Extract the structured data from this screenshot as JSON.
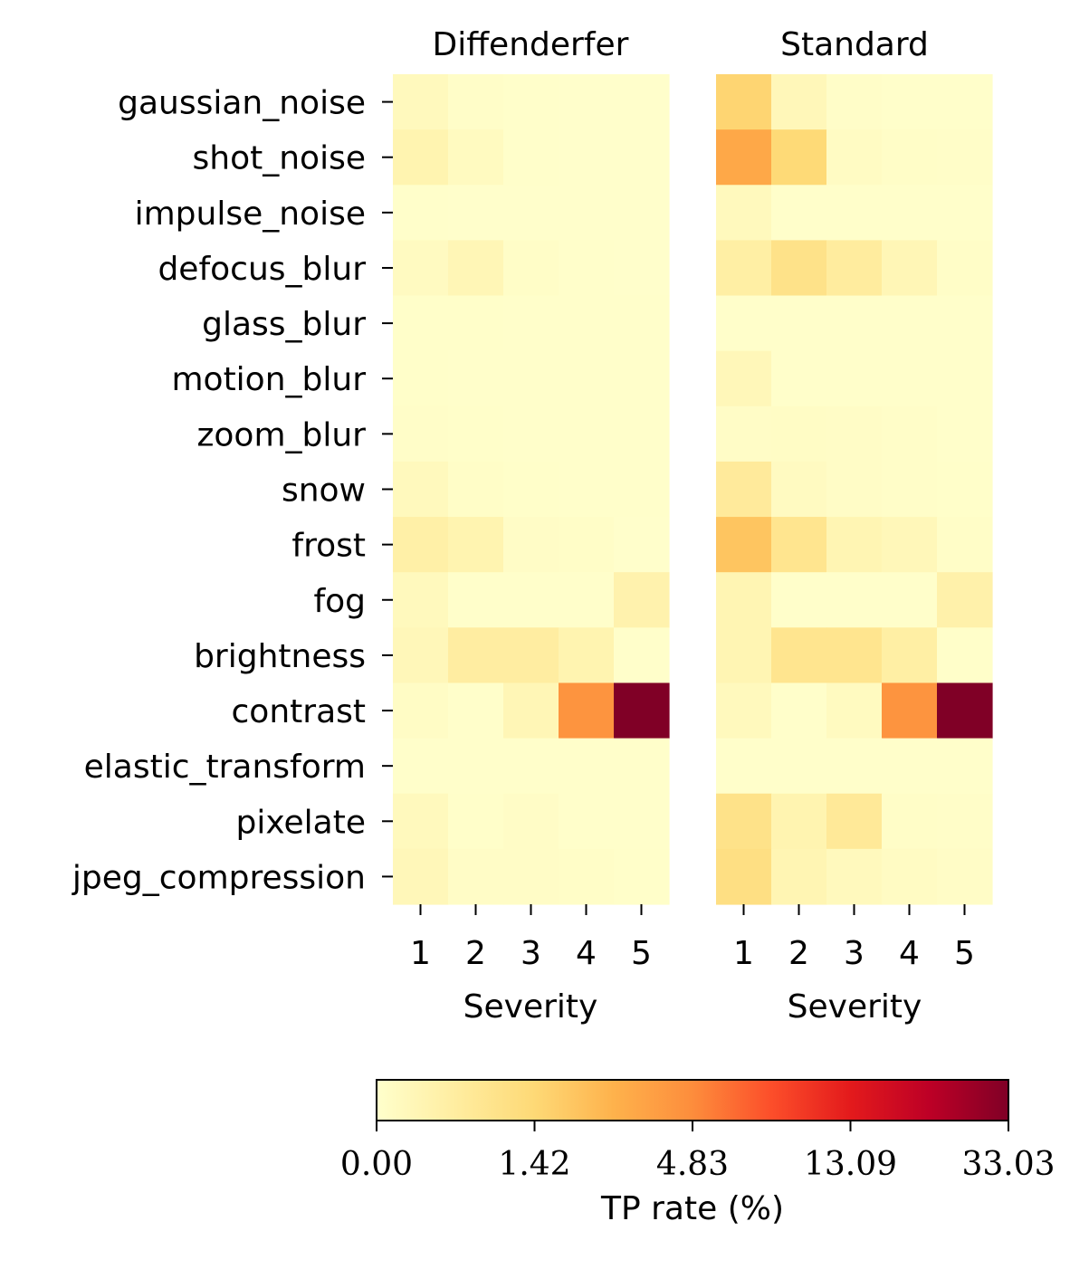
{
  "chart_data": {
    "type": "heatmap",
    "rows": [
      "gaussian_noise",
      "shot_noise",
      "impulse_noise",
      "defocus_blur",
      "glass_blur",
      "motion_blur",
      "zoom_blur",
      "snow",
      "frost",
      "fog",
      "brightness",
      "contrast",
      "elastic_transform",
      "pixelate",
      "jpeg_compression"
    ],
    "columns": [
      "1",
      "2",
      "3",
      "4",
      "5"
    ],
    "xlabel": "Severity",
    "panels": [
      {
        "title": "Diffenderfer",
        "values": [
          [
            0.25,
            0.06,
            0.03,
            0.02,
            0.02
          ],
          [
            0.45,
            0.2,
            0.03,
            0.02,
            0.02
          ],
          [
            0.03,
            0.02,
            0.02,
            0.02,
            0.02
          ],
          [
            0.18,
            0.35,
            0.08,
            0.03,
            0.02
          ],
          [
            0.05,
            0.05,
            0.04,
            0.04,
            0.04
          ],
          [
            0.05,
            0.04,
            0.03,
            0.03,
            0.03
          ],
          [
            0.06,
            0.05,
            0.04,
            0.03,
            0.03
          ],
          [
            0.25,
            0.08,
            0.05,
            0.04,
            0.04
          ],
          [
            0.6,
            0.45,
            0.1,
            0.08,
            0.02
          ],
          [
            0.25,
            0.03,
            0.03,
            0.03,
            0.5
          ],
          [
            0.3,
            0.7,
            0.7,
            0.45,
            0.04
          ],
          [
            0.12,
            0.03,
            0.35,
            4.5,
            33.03
          ],
          [
            0.03,
            0.03,
            0.03,
            0.03,
            0.03
          ],
          [
            0.25,
            0.05,
            0.1,
            0.03,
            0.03
          ],
          [
            0.3,
            0.1,
            0.1,
            0.08,
            0.05
          ]
        ]
      },
      {
        "title": "Standard",
        "values": [
          [
            1.6,
            0.3,
            0.06,
            0.04,
            0.04
          ],
          [
            3.6,
            1.4,
            0.15,
            0.08,
            0.06
          ],
          [
            0.25,
            0.03,
            0.03,
            0.03,
            0.03
          ],
          [
            0.65,
            1.1,
            0.75,
            0.35,
            0.08
          ],
          [
            0.03,
            0.03,
            0.03,
            0.03,
            0.03
          ],
          [
            0.3,
            0.04,
            0.03,
            0.03,
            0.03
          ],
          [
            0.1,
            0.12,
            0.1,
            0.06,
            0.04
          ],
          [
            0.8,
            0.18,
            0.1,
            0.06,
            0.05
          ],
          [
            2.3,
            1.0,
            0.4,
            0.3,
            0.08
          ],
          [
            0.4,
            0.03,
            0.03,
            0.03,
            0.55
          ],
          [
            0.4,
            1.0,
            1.0,
            0.65,
            0.05
          ],
          [
            0.25,
            0.03,
            0.2,
            4.5,
            33.03
          ],
          [
            0.03,
            0.03,
            0.03,
            0.03,
            0.03
          ],
          [
            1.1,
            0.45,
            0.85,
            0.08,
            0.06
          ],
          [
            1.2,
            0.4,
            0.25,
            0.15,
            0.1
          ]
        ]
      }
    ],
    "colorbar": {
      "label": "TP rate (%)",
      "ticks": [
        "0.00",
        "1.42",
        "4.83",
        "13.09",
        "33.03"
      ],
      "tick_values": [
        0.0,
        1.42,
        4.83,
        13.09,
        33.03
      ],
      "colormap": "YlOrRd",
      "orientation": "horizontal"
    }
  }
}
